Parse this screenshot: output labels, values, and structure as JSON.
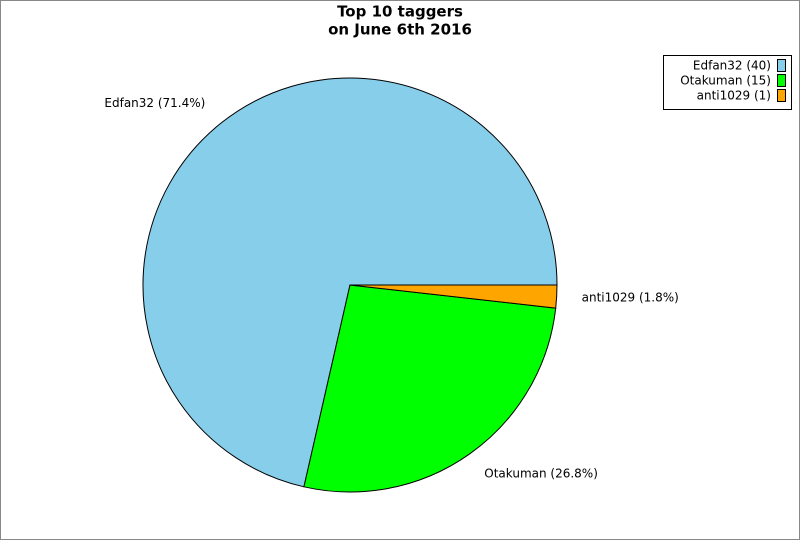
{
  "chart_data": {
    "type": "pie",
    "title": [
      "Top 10 taggers",
      "on June 6th 2016"
    ],
    "categories": [
      "Edfan32",
      "Otakuman",
      "anti1029"
    ],
    "values": [
      40,
      15,
      1
    ],
    "slice_labels": [
      "Edfan32 (71.4%)",
      "Otakuman (26.8%)",
      "anti1029 (1.8%)"
    ],
    "legend_labels": [
      "Edfan32 (40)",
      "Otakuman (15)",
      "anti1029 (1)"
    ],
    "colors": [
      "#87ceeb",
      "#00ff00",
      "#ffa500"
    ],
    "legend": "top-right"
  }
}
